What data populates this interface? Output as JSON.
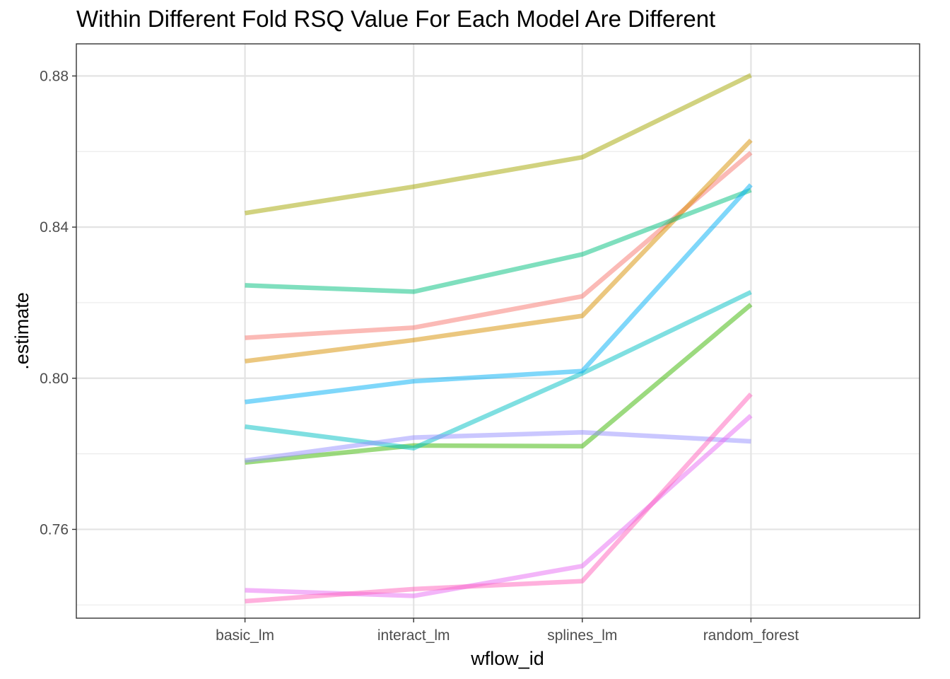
{
  "chart_data": {
    "type": "line",
    "title": "Within Different Fold RSQ Value For Each Model Are Different",
    "xlabel": "wflow_id",
    "ylabel": ".estimate",
    "categories": [
      "basic_lm",
      "interact_lm",
      "splines_lm",
      "random_forest"
    ],
    "ylim": [
      0.7365,
      0.8885
    ],
    "yticks": [
      0.76,
      0.8,
      0.84,
      0.88
    ],
    "ytick_labels": [
      "0.76",
      "0.80",
      "0.84",
      "0.88"
    ],
    "grid": true,
    "legend": "none",
    "series": [
      {
        "color": "#F8766D",
        "values": [
          0.8107,
          0.8134,
          0.8217,
          0.8597
        ]
      },
      {
        "color": "#D89000",
        "values": [
          0.8045,
          0.8101,
          0.8165,
          0.863
        ]
      },
      {
        "color": "#A3A500",
        "values": [
          0.8437,
          0.8507,
          0.8585,
          0.8802
        ]
      },
      {
        "color": "#39B600",
        "values": [
          0.7777,
          0.7822,
          0.782,
          0.8195
        ]
      },
      {
        "color": "#00BF7D",
        "values": [
          0.8246,
          0.8229,
          0.8328,
          0.8498
        ]
      },
      {
        "color": "#00BFC4",
        "values": [
          0.7872,
          0.7815,
          0.8013,
          0.8228
        ]
      },
      {
        "color": "#00B0F6",
        "values": [
          0.7937,
          0.7992,
          0.8019,
          0.8512
        ]
      },
      {
        "color": "#9590FF",
        "values": [
          0.7782,
          0.7843,
          0.7857,
          0.7833
        ]
      },
      {
        "color": "#E76BF3",
        "values": [
          0.7439,
          0.7424,
          0.7503,
          0.7901
        ]
      },
      {
        "color": "#FF62BC",
        "values": [
          0.741,
          0.7442,
          0.7463,
          0.7958
        ]
      }
    ]
  }
}
